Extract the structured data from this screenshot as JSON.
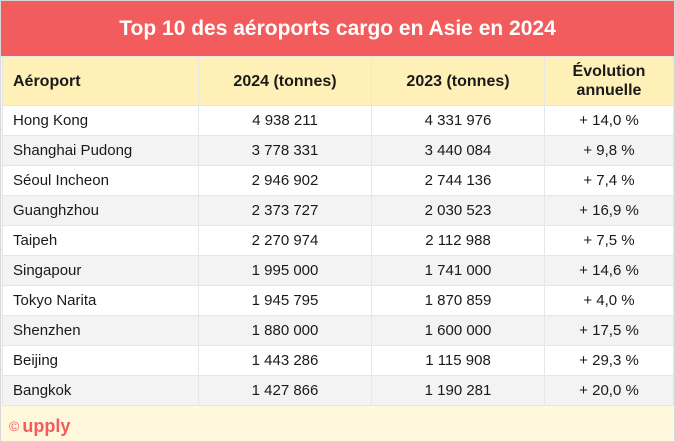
{
  "chart_data": {
    "type": "table",
    "title": "Top 10 des aéroports cargo en Asie en 2024",
    "columns": [
      "Aéroport",
      "2024 (tonnes)",
      "2023 (tonnes)",
      "Évolution annuelle"
    ],
    "rows": [
      {
        "airport": "Hong Kong",
        "y2024": "4 938 211",
        "y2023": "4 331 976",
        "change": "+ 14,0 %"
      },
      {
        "airport": "Shanghai Pudong",
        "y2024": "3 778 331",
        "y2023": "3 440 084",
        "change": "+ 9,8 %"
      },
      {
        "airport": "Séoul Incheon",
        "y2024": "2 946 902",
        "y2023": "2 744 136",
        "change": "+ 7,4 %"
      },
      {
        "airport": "Guanghzhou",
        "y2024": "2 373 727",
        "y2023": "2 030 523",
        "change": "+ 16,9 %"
      },
      {
        "airport": "Taipeh",
        "y2024": "2 270 974",
        "y2023": "2 112 988",
        "change": "+ 7,5 %"
      },
      {
        "airport": "Singapour",
        "y2024": "1 995 000",
        "y2023": "1 741 000",
        "change": "+ 14,6 %"
      },
      {
        "airport": "Tokyo Narita",
        "y2024": "1 945 795",
        "y2023": "1 870 859",
        "change": "+ 4,0 %"
      },
      {
        "airport": "Shenzhen",
        "y2024": "1 880 000",
        "y2023": "1 600 000",
        "change": "+ 17,5 %"
      },
      {
        "airport": "Beijing",
        "y2024": "1 443 286",
        "y2023": "1 115 908",
        "change": "+ 29,3 %"
      },
      {
        "airport": "Bangkok",
        "y2024": "1 427 866",
        "y2023": "1 190 281",
        "change": "+ 20,0 %"
      }
    ]
  },
  "header": {
    "col_airport": "Aéroport",
    "col_2024": "2024 (tonnes)",
    "col_2023": "2023 (tonnes)",
    "col_change_line1": "Évolution",
    "col_change_line2": "annuelle"
  },
  "footer": {
    "copyright_symbol": "©",
    "brand": "upply"
  },
  "colors": {
    "accent": "#f25c5c",
    "header_bg": "#fff0b8",
    "footer_bg": "#fff8dc"
  }
}
